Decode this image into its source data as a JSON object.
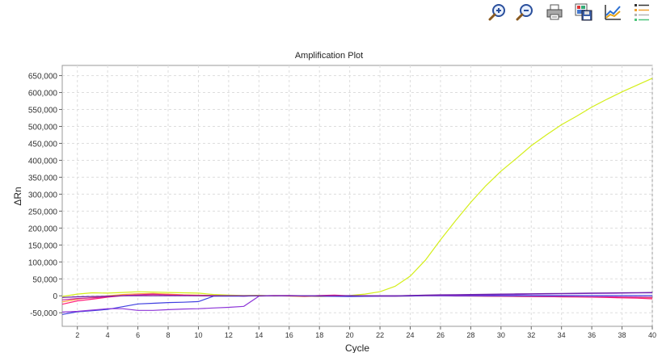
{
  "toolbar": {
    "buttons": [
      {
        "name": "zoom-in-icon"
      },
      {
        "name": "zoom-out-icon"
      },
      {
        "name": "print-icon"
      },
      {
        "name": "save-image-icon"
      },
      {
        "name": "plot-settings-icon"
      },
      {
        "name": "legend-icon"
      }
    ]
  },
  "chart_data": {
    "type": "line",
    "title": "Amplification Plot",
    "xlabel": "Cycle",
    "ylabel": "ΔRn",
    "xlim": [
      1,
      40
    ],
    "ylim": [
      -90000,
      680000
    ],
    "x_ticks": [
      2,
      4,
      6,
      8,
      10,
      12,
      14,
      16,
      18,
      20,
      22,
      24,
      26,
      28,
      30,
      32,
      34,
      36,
      38,
      40
    ],
    "y_ticks": [
      -50000,
      0,
      50000,
      100000,
      150000,
      200000,
      250000,
      300000,
      350000,
      400000,
      450000,
      500000,
      550000,
      600000,
      650000
    ],
    "y_tick_labels": [
      "-50,000",
      "0",
      "50,000",
      "100,000",
      "150,000",
      "200,000",
      "250,000",
      "300,000",
      "350,000",
      "400,000",
      "450,000",
      "500,000",
      "550,000",
      "600,000",
      "650,000"
    ],
    "grid": true,
    "x": [
      1,
      2,
      3,
      4,
      5,
      6,
      7,
      8,
      9,
      10,
      11,
      12,
      13,
      14,
      15,
      16,
      17,
      18,
      19,
      20,
      21,
      22,
      23,
      24,
      25,
      26,
      27,
      28,
      29,
      30,
      31,
      32,
      33,
      34,
      35,
      36,
      37,
      38,
      39,
      40
    ],
    "series": [
      {
        "color": "#d4ee1a",
        "values": [
          -2000,
          5000,
          9000,
          8000,
          10000,
          12000,
          11000,
          10000,
          9000,
          8000,
          4000,
          2000,
          1000,
          1500,
          -500,
          0,
          -1000,
          -2000,
          -1000,
          1000,
          5000,
          12000,
          28000,
          58000,
          105000,
          165000,
          222000,
          276000,
          325000,
          368000,
          405000,
          443000,
          475000,
          505000,
          530000,
          557000,
          580000,
          602000,
          622000,
          642000
        ]
      },
      {
        "color": "#ff9a3c",
        "values": [
          -18000,
          -10000,
          -5000,
          0,
          4000,
          6000,
          7000,
          5000,
          3000,
          2000,
          1000,
          0,
          -500,
          500,
          0,
          -1000,
          -2000,
          -1000,
          -500,
          0,
          500,
          -500,
          -1000,
          -500,
          0,
          500,
          0,
          -500,
          -1000,
          -1500,
          -2000,
          -2000,
          -2500,
          -3000,
          -3000,
          -3500,
          -4000,
          -4500,
          -5000,
          -6000
        ]
      },
      {
        "color": "#ff1f7a",
        "values": [
          -25000,
          -15000,
          -10000,
          -4000,
          0,
          2000,
          4000,
          3000,
          2000,
          1000,
          500,
          0,
          -500,
          0,
          500,
          0,
          -1000,
          1000,
          2000,
          0,
          -1000,
          -500,
          0,
          500,
          1000,
          1000,
          500,
          0,
          -500,
          -1000,
          -1500,
          -2000,
          -2500,
          -3000,
          -3500,
          -4000,
          -5000,
          -6000,
          -7000,
          -9000
        ]
      },
      {
        "color": "#cc2299",
        "values": [
          -12000,
          -8000,
          -6000,
          -3000,
          1000,
          3000,
          5000,
          2000,
          1000,
          0,
          -500,
          0,
          -500,
          0,
          500,
          1000,
          0,
          -1000,
          -500,
          0,
          -500,
          -1000,
          -1000,
          0,
          500,
          0,
          -500,
          -500,
          -1000,
          -1000,
          -1500,
          -1500,
          -2000,
          -2000,
          -2500,
          -3000,
          -3000,
          -3500,
          -4000,
          -4500
        ]
      },
      {
        "color": "#3f3fe0",
        "values": [
          -55000,
          -47000,
          -44000,
          -40000,
          -32000,
          -24000,
          -22000,
          -20000,
          -19000,
          -17000,
          -1000,
          -1000,
          -800,
          0,
          0,
          0,
          -500,
          -1000,
          -1500,
          -2000,
          -1500,
          -1000,
          -1000,
          -500,
          0,
          0,
          500,
          500,
          500,
          500,
          500,
          500,
          500,
          500,
          500,
          500,
          500,
          500,
          500,
          500
        ]
      },
      {
        "color": "#8d35d8",
        "values": [
          -48000,
          -46000,
          -42000,
          -38000,
          -38000,
          -43000,
          -43000,
          -41000,
          -39000,
          -38000,
          -36000,
          -34000,
          -31000,
          -1000,
          0,
          0,
          0,
          0,
          0,
          500,
          0,
          0,
          0,
          500,
          1000,
          1500,
          2000,
          2500,
          3000,
          3500,
          4000,
          5000,
          5500,
          6000,
          6500,
          7000,
          7500,
          8000,
          8500,
          9000
        ]
      },
      {
        "color": "#6b1fa6",
        "values": [
          -5000,
          -3000,
          -2000,
          -1000,
          0,
          0,
          0,
          0,
          0,
          0,
          0,
          0,
          0,
          0,
          0,
          0,
          0,
          0,
          0,
          0,
          0,
          0,
          0,
          1000,
          2000,
          3000,
          3500,
          4000,
          4500,
          5000,
          5500,
          6000,
          6500,
          7000,
          7500,
          8000,
          8500,
          9000,
          9500,
          10000
        ]
      }
    ]
  }
}
